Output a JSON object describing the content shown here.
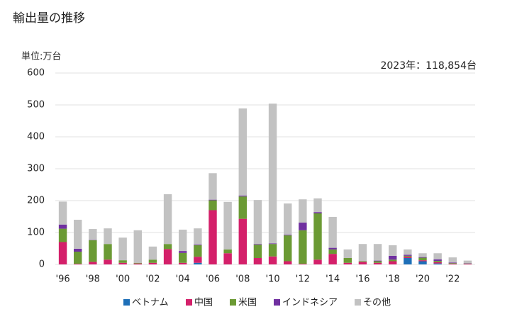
{
  "chart_data": {
    "type": "bar",
    "stacked": true,
    "title": "輸出量の推移",
    "unit_label": "単位:万台",
    "annotation": "2023年：118,854台",
    "categories": [
      "'96",
      null,
      "'98",
      null,
      "'00",
      null,
      "'02",
      null,
      "'04",
      null,
      "'06",
      null,
      "'08",
      null,
      "'10",
      null,
      "'12",
      null,
      "'14",
      null,
      "'16",
      null,
      "'18",
      null,
      "'20",
      null,
      "'22",
      null
    ],
    "series": [
      {
        "name": "ベトナム",
        "color": "#1e6fb8",
        "values": [
          0,
          0,
          0,
          0,
          0,
          0,
          0,
          0,
          0,
          5,
          0,
          0,
          0,
          0,
          0,
          0,
          0,
          0,
          0,
          0,
          0,
          0,
          0,
          20,
          10,
          3,
          0,
          0
        ]
      },
      {
        "name": "中国",
        "color": "#d4206a",
        "values": [
          70,
          2,
          8,
          15,
          5,
          3,
          5,
          48,
          5,
          19,
          170,
          35,
          143,
          20,
          25,
          10,
          2,
          15,
          33,
          5,
          8,
          5,
          10,
          4,
          3,
          4,
          2,
          2
        ]
      },
      {
        "name": "米国",
        "color": "#6b9a34",
        "values": [
          42,
          38,
          68,
          49,
          8,
          2,
          10,
          16,
          31,
          36,
          31,
          12,
          70,
          42,
          39,
          81,
          105,
          145,
          14,
          15,
          2,
          5,
          5,
          3,
          8,
          4,
          2,
          1
        ]
      },
      {
        "name": "インドネシア",
        "color": "#7030a0",
        "values": [
          13,
          9,
          1,
          0,
          0,
          0,
          0,
          0,
          6,
          2,
          2,
          0,
          3,
          2,
          2,
          2,
          24,
          4,
          5,
          0,
          0,
          2,
          12,
          3,
          2,
          5,
          2,
          1
        ]
      },
      {
        "name": "その他",
        "color": "#c2c2c2",
        "values": [
          72,
          91,
          34,
          49,
          71,
          102,
          41,
          156,
          67,
          51,
          83,
          149,
          273,
          138,
          438,
          98,
          73,
          43,
          97,
          27,
          54,
          52,
          33,
          17,
          12,
          19,
          16,
          8
        ]
      }
    ],
    "ylim": [
      0,
      600
    ],
    "yticks": [
      0,
      100,
      200,
      300,
      400,
      500,
      600
    ],
    "grid": true,
    "legend": "bottom"
  }
}
